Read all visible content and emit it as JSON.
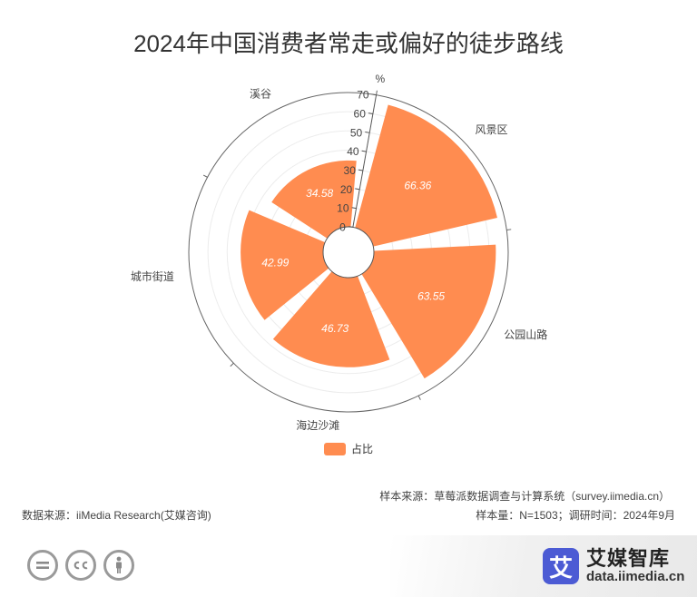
{
  "title": "2024年中国消费者常走或偏好的徒步路线",
  "chart_data": {
    "type": "polar-bar",
    "series_name": "占比",
    "unit": "%",
    "categories": [
      "风景区",
      "公园山路",
      "海边沙滩",
      "城市街道",
      "溪谷"
    ],
    "values": [
      66.36,
      63.55,
      46.73,
      42.99,
      34.58
    ],
    "radial_ticks": [
      0,
      10,
      20,
      30,
      40,
      50,
      60,
      70
    ],
    "rmax": 70,
    "color": "#ff8c50"
  },
  "legend_label": "占比",
  "sample_source": "样本来源：草莓派数据调查与计算系统（survey.iimedia.cn）",
  "sample_info": "样本量：N=1503；调研时间：2024年9月",
  "data_source": "数据来源：iiMedia Research(艾媒咨询)",
  "brand": {
    "logo_char": "艾",
    "name": "艾媒智库",
    "url": "data.iimedia.cn"
  },
  "cc_icons": [
    "=",
    "cc",
    "person-icon"
  ]
}
